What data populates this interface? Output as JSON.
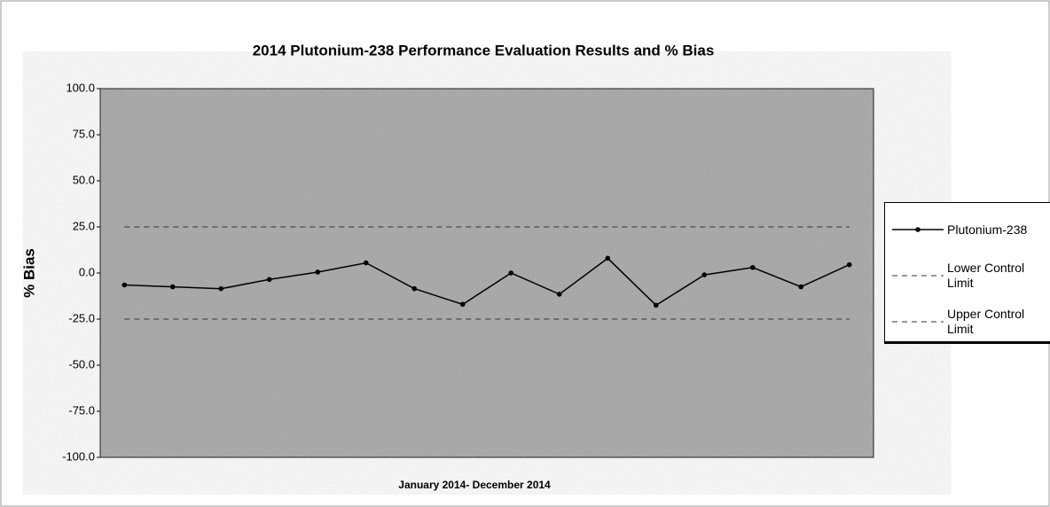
{
  "chart_data": {
    "type": "line",
    "title": "2014 Plutonium-238 Performance Evaluation Results and % Bias",
    "xlabel": "January 2014- December 2014",
    "ylabel": "% Bias",
    "categories": [
      null,
      null,
      null,
      null,
      null,
      null,
      null,
      null,
      null,
      null,
      null,
      null,
      null,
      null,
      null,
      null
    ],
    "series": [
      {
        "name": "Plutonium-238",
        "color": "#000000",
        "values": [
          -6.5,
          -7.5,
          -8.5,
          -3.5,
          0.5,
          5.5,
          -8.5,
          -17,
          0,
          -11.5,
          8,
          -17.5,
          -1,
          3,
          -7.5,
          4.5
        ]
      },
      {
        "name": "Lower Control Limit",
        "color": "#333333",
        "dashed": true,
        "values": [
          -25,
          -25,
          -25,
          -25,
          -25,
          -25,
          -25,
          -25,
          -25,
          -25,
          -25,
          -25,
          -25,
          -25,
          -25,
          -25
        ]
      },
      {
        "name": "Upper Control Limit",
        "color": "#333333",
        "dashed": true,
        "values": [
          25,
          25,
          25,
          25,
          25,
          25,
          25,
          25,
          25,
          25,
          25,
          25,
          25,
          25,
          25,
          25
        ]
      }
    ],
    "ylim": [
      -100,
      100
    ],
    "yticks": [
      {
        "value": -100,
        "label": "-100.0"
      },
      {
        "value": -75,
        "label": "-75.0"
      },
      {
        "value": -50,
        "label": "-50.0"
      },
      {
        "value": -25,
        "label": "-25.0"
      },
      {
        "value": 0,
        "label": "0.0"
      },
      {
        "value": 25,
        "label": "25.0"
      },
      {
        "value": 50,
        "label": "50.0"
      },
      {
        "value": 75,
        "label": "75.0"
      },
      {
        "value": 100,
        "label": "100.0"
      }
    ]
  }
}
